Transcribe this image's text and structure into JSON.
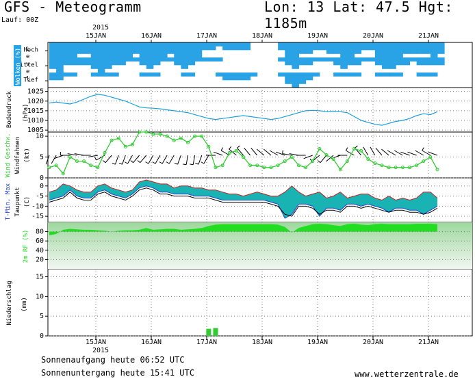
{
  "header": {
    "title": "GFS - Meteogramm",
    "coords": "Lon: 13 Lat: 47.5 Hgt: 1185m",
    "run": "Lauf: 00Z"
  },
  "footer": {
    "sunrise": "Sonnenaufgang heute 06:52 UTC",
    "sunset": "Sonnenuntergang heute 15:41 UTC",
    "source": "www.wetterzentrale.de"
  },
  "colors": {
    "cloud": "#29a3e6",
    "pressure": "#1a9fd8",
    "wind": "#33cc33",
    "temp_fill": "#1ab3b3",
    "temp_red": "#cc2222",
    "temp_blue": "#2244cc",
    "rh_fill": "#22dd22",
    "precip": "#33cc33"
  },
  "chart_data": [
    {
      "type": "heatmap",
      "panel": "clouds",
      "ylabel": "Wolken (%)",
      "levels": [
        "Hoch",
        "Mittel",
        "Tief"
      ],
      "side_letters": [
        "L",
        "e",
        "v",
        "e",
        "l"
      ],
      "year_label": "2015",
      "x_labels": [
        "15JAN",
        "16JAN",
        "17JAN",
        "18JAN",
        "19JAN",
        "20JAN",
        "21JAN"
      ],
      "x": [
        0,
        3,
        6,
        9,
        12,
        15,
        18,
        21,
        24,
        27,
        30,
        33,
        36,
        39,
        42,
        45,
        48,
        51,
        54,
        57,
        60,
        63,
        66,
        69,
        72,
        75,
        78,
        81,
        84,
        87,
        90,
        93,
        96,
        99,
        102,
        105,
        108,
        111,
        114,
        117,
        120,
        123,
        126,
        129,
        132,
        135,
        138,
        141,
        144,
        147,
        150,
        153,
        156,
        159,
        162,
        165,
        168
      ],
      "coverage": {
        "Hoch": [
          90,
          100,
          100,
          95,
          70,
          80,
          100,
          100,
          100,
          90,
          95,
          100,
          70,
          100,
          100,
          95,
          90,
          85,
          100,
          100,
          100,
          100,
          60,
          50,
          30,
          60,
          60,
          50,
          40,
          10,
          5,
          0,
          0,
          40,
          90,
          100,
          80,
          70,
          60,
          50,
          70,
          80,
          100,
          90,
          85,
          50,
          60,
          90,
          95,
          100,
          90,
          85,
          80,
          80,
          80,
          90,
          70
        ],
        "Mittel": [
          80,
          90,
          60,
          50,
          40,
          60,
          80,
          90,
          70,
          50,
          40,
          30,
          30,
          60,
          70,
          50,
          30,
          30,
          50,
          70,
          50,
          30,
          20,
          20,
          20,
          10,
          10,
          10,
          10,
          0,
          0,
          0,
          0,
          20,
          60,
          80,
          60,
          40,
          20,
          20,
          30,
          50,
          70,
          60,
          40,
          20,
          30,
          60,
          80,
          70,
          50,
          40,
          30,
          40,
          60,
          50,
          40
        ],
        "Tief": [
          60,
          50,
          30,
          20,
          10,
          10,
          20,
          30,
          30,
          20,
          10,
          10,
          10,
          20,
          30,
          20,
          10,
          10,
          10,
          20,
          20,
          10,
          10,
          10,
          30,
          50,
          60,
          50,
          40,
          20,
          10,
          10,
          10,
          30,
          70,
          90,
          70,
          40,
          20,
          10,
          10,
          20,
          30,
          30,
          20,
          10,
          10,
          20,
          30,
          30,
          20,
          10,
          10,
          20,
          30,
          20,
          10
        ]
      }
    },
    {
      "type": "line",
      "panel": "pressure",
      "ylabel": "Bodendruck",
      "unit": "(hPa)",
      "yticks": [
        1005,
        1010,
        1015,
        1020,
        1025
      ],
      "ylim": [
        1004,
        1027
      ],
      "x": [
        0,
        3,
        6,
        9,
        12,
        15,
        18,
        21,
        24,
        27,
        30,
        33,
        36,
        39,
        42,
        45,
        48,
        51,
        54,
        57,
        60,
        63,
        66,
        69,
        72,
        75,
        78,
        81,
        84,
        87,
        90,
        93,
        96,
        99,
        102,
        105,
        108,
        111,
        114,
        117,
        120,
        123,
        126,
        129,
        132,
        135,
        138,
        141,
        144,
        147,
        150,
        153,
        156,
        159,
        162,
        165,
        168
      ],
      "y": [
        1019,
        1019.5,
        1019,
        1018.5,
        1019.5,
        1021,
        1022.5,
        1023.5,
        1023,
        1022,
        1021,
        1020,
        1018.5,
        1017,
        1016.5,
        1016.3,
        1016,
        1015.5,
        1015,
        1014.5,
        1014,
        1013,
        1012,
        1011,
        1010.5,
        1011,
        1011.5,
        1012,
        1012.5,
        1012,
        1011.5,
        1011,
        1010.5,
        1011,
        1012,
        1013,
        1014,
        1015,
        1015.2,
        1015,
        1014.5,
        1014.8,
        1014.5,
        1014,
        1012,
        1010,
        1009,
        1008,
        1007.5,
        1008.5,
        1009.5,
        1010,
        1011,
        1012.5,
        1013.5,
        1013,
        1014.5
      ]
    },
    {
      "type": "line",
      "panel": "wind",
      "ylabel": "Wind Geschw.",
      "ylabel2": "Windfahnen",
      "unit": "(kt)",
      "yticks": [
        0,
        5,
        10
      ],
      "ylim": [
        0,
        11
      ],
      "x": [
        0,
        3,
        6,
        9,
        12,
        15,
        18,
        21,
        24,
        27,
        30,
        33,
        36,
        39,
        42,
        45,
        48,
        51,
        54,
        57,
        60,
        63,
        66,
        69,
        72,
        75,
        78,
        81,
        84,
        87,
        90,
        93,
        96,
        99,
        102,
        105,
        108,
        111,
        114,
        117,
        120,
        123,
        126,
        129,
        132,
        135,
        138,
        141,
        144,
        147,
        150,
        153,
        156,
        159,
        162,
        165,
        168
      ],
      "y": [
        2.5,
        3,
        1,
        5,
        4,
        4,
        3,
        2.5,
        6,
        9,
        9.5,
        7.5,
        8,
        11,
        11,
        10.5,
        10.5,
        10,
        9,
        9.5,
        8.5,
        10,
        10,
        7.5,
        2.5,
        3,
        6,
        6.5,
        5,
        3,
        3,
        2.5,
        2.5,
        3,
        4,
        5,
        3,
        2.5,
        4,
        7,
        5.5,
        4.5,
        2,
        4,
        7,
        6.5,
        4.5,
        3.5,
        3,
        2.5,
        2.5,
        2.5,
        2.5,
        3,
        4,
        5,
        2
      ],
      "barb_direction_deg": [
        200,
        210,
        250,
        270,
        280,
        280,
        270,
        260,
        240,
        220,
        200,
        200,
        210,
        220,
        220,
        210,
        210,
        210,
        210,
        200,
        190,
        190,
        200,
        210,
        270,
        290,
        300,
        310,
        320,
        320,
        320,
        310,
        310,
        300,
        290,
        280,
        280,
        270,
        250,
        230,
        220,
        230,
        250,
        270,
        300,
        320,
        330,
        330,
        320,
        310,
        300,
        300,
        290,
        290,
        300,
        300,
        290
      ]
    },
    {
      "type": "area",
      "panel": "temperature",
      "ylabel": "T-Min, Max",
      "ylabel2": "Taupunkt",
      "unit": "(C)",
      "yticks": [
        -15,
        -10,
        -5,
        0
      ],
      "ylim": [
        -18,
        4
      ],
      "x": [
        0,
        3,
        6,
        9,
        12,
        15,
        18,
        21,
        24,
        27,
        30,
        33,
        36,
        39,
        42,
        45,
        48,
        51,
        54,
        57,
        60,
        63,
        66,
        69,
        72,
        75,
        78,
        81,
        84,
        87,
        90,
        93,
        96,
        99,
        102,
        105,
        108,
        111,
        114,
        117,
        120,
        123,
        126,
        129,
        132,
        135,
        138,
        141,
        144,
        147,
        150,
        153,
        156,
        159,
        162,
        165,
        168
      ],
      "series": [
        {
          "name": "T-Max",
          "values": [
            -3,
            -2,
            1,
            0,
            -2,
            -3,
            -3,
            0,
            1,
            -1,
            -2,
            -3,
            -2,
            2,
            3,
            2,
            1,
            1,
            -1,
            0,
            0,
            -1,
            -1,
            -2,
            -2,
            -3,
            -4,
            -4,
            -5,
            -4,
            -3,
            -4,
            -5,
            -5,
            -3,
            0,
            -3,
            -5,
            -4,
            -3,
            -6,
            -5,
            -3,
            -6,
            -5,
            -4,
            -4,
            -6,
            -7,
            -5,
            -7,
            -6,
            -7,
            -6,
            -3,
            -3,
            -6
          ]
        },
        {
          "name": "T-Min",
          "values": [
            -7,
            -6,
            -5,
            -2,
            -5,
            -6,
            -6,
            -3,
            -2,
            -4,
            -5,
            -6,
            -4,
            -1,
            0,
            -1,
            -3,
            -3,
            -4,
            -4,
            -4,
            -5,
            -5,
            -5,
            -6,
            -7,
            -7,
            -7,
            -7,
            -7,
            -7,
            -7,
            -8,
            -9,
            -16,
            -14,
            -9,
            -9,
            -10,
            -15,
            -11,
            -11,
            -12,
            -9,
            -9,
            -10,
            -9,
            -10,
            -11,
            -13,
            -11,
            -11,
            -12,
            -12,
            -14,
            -12,
            -10
          ]
        },
        {
          "name": "Taupunkt",
          "values": [
            -8,
            -7,
            -6,
            -3,
            -6,
            -7,
            -7,
            -4,
            -3,
            -5,
            -6,
            -7,
            -5,
            -2,
            -1,
            -2,
            -4,
            -4,
            -5,
            -5,
            -5,
            -6,
            -6,
            -6,
            -7,
            -8,
            -8,
            -8,
            -8,
            -8,
            -8,
            -8,
            -9,
            -10,
            -14,
            -15,
            -10,
            -10,
            -11,
            -14,
            -12,
            -12,
            -13,
            -10,
            -10,
            -11,
            -10,
            -11,
            -12,
            -13,
            -12,
            -12,
            -13,
            -13,
            -14,
            -13,
            -11
          ]
        }
      ]
    },
    {
      "type": "area",
      "panel": "humidity",
      "ylabel": "2m RF (%)",
      "yticks": [
        20,
        40,
        60,
        80
      ],
      "ylim": [
        0,
        100
      ],
      "x": [
        0,
        3,
        6,
        9,
        12,
        15,
        18,
        21,
        24,
        27,
        30,
        33,
        36,
        39,
        42,
        45,
        48,
        51,
        54,
        57,
        60,
        63,
        66,
        69,
        72,
        75,
        78,
        81,
        84,
        87,
        90,
        93,
        96,
        99,
        102,
        105,
        108,
        111,
        114,
        117,
        120,
        123,
        126,
        129,
        132,
        135,
        138,
        141,
        144,
        147,
        150,
        153,
        156,
        159,
        162,
        165,
        168
      ],
      "y": [
        72,
        75,
        84,
        86,
        85,
        84,
        84,
        83,
        82,
        80,
        82,
        83,
        83,
        84,
        88,
        84,
        85,
        86,
        86,
        84,
        85,
        86,
        88,
        92,
        95,
        96,
        96,
        96,
        96,
        96,
        96,
        96,
        96,
        95,
        90,
        78,
        88,
        92,
        96,
        97,
        96,
        94,
        92,
        96,
        97,
        95,
        94,
        96,
        97,
        96,
        96,
        96,
        96,
        97,
        97,
        97,
        96
      ]
    },
    {
      "type": "bar",
      "panel": "precipitation",
      "ylabel": "Niederschlag",
      "unit": "(mm)",
      "yticks": [
        0,
        5,
        10,
        15
      ],
      "ylim": [
        0,
        17
      ],
      "year_label": "2015",
      "x_labels": [
        "15JAN",
        "16JAN",
        "17JAN",
        "18JAN",
        "19JAN",
        "20JAN",
        "21JAN"
      ],
      "x": [
        0,
        3,
        6,
        9,
        12,
        15,
        18,
        21,
        24,
        27,
        30,
        33,
        36,
        39,
        42,
        45,
        48,
        51,
        54,
        57,
        60,
        63,
        66,
        69,
        72,
        75,
        78,
        81,
        84,
        87,
        90,
        93,
        96,
        99,
        102,
        105,
        108,
        111,
        114,
        117,
        120,
        123,
        126,
        129,
        132,
        135,
        138,
        141,
        144,
        147,
        150,
        153,
        156,
        159,
        162,
        165,
        168
      ],
      "values": [
        0,
        0,
        0,
        0,
        0,
        0,
        0,
        0,
        0,
        0,
        0,
        0,
        0,
        0,
        0,
        0,
        0,
        0,
        0,
        0,
        0,
        0,
        0,
        1.8,
        2,
        0,
        0,
        0,
        0,
        0,
        0,
        0,
        0,
        0,
        0,
        0,
        0,
        0,
        0,
        0,
        0,
        0,
        0,
        0,
        0,
        0,
        0,
        0,
        0,
        0,
        0,
        0,
        0,
        0,
        0,
        0,
        0
      ],
      "values_full": [
        0,
        0,
        0,
        0,
        0,
        0,
        0,
        0,
        0,
        0,
        0,
        0,
        0,
        0,
        0,
        0,
        0,
        0,
        0,
        0,
        0,
        0,
        0,
        0,
        0,
        0,
        0,
        0,
        0,
        0,
        0,
        0,
        0,
        0,
        0,
        0,
        0,
        0,
        0,
        0,
        0,
        0,
        0,
        0,
        0,
        0,
        0,
        0,
        0,
        0,
        0,
        0,
        0,
        0,
        0,
        0,
        0
      ]
    }
  ]
}
